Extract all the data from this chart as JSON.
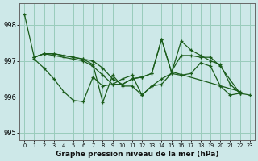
{
  "xlabel": "Graphe pression niveau de la mer (hPa)",
  "bg_color": "#cde8e8",
  "grid_color": "#99ccbb",
  "line_color": "#1a5c1a",
  "marker": "+",
  "xlim": [
    -0.5,
    23.5
  ],
  "ylim": [
    994.8,
    998.6
  ],
  "yticks": [
    995,
    996,
    997,
    998
  ],
  "xticks": [
    0,
    1,
    2,
    3,
    4,
    5,
    6,
    7,
    8,
    9,
    10,
    11,
    12,
    13,
    14,
    15,
    16,
    17,
    18,
    19,
    20,
    21,
    22,
    23
  ],
  "series_x": [
    [
      0,
      1,
      2,
      3,
      4,
      5,
      6,
      7,
      8,
      9,
      10,
      11,
      12,
      13,
      14,
      15,
      16,
      17,
      18,
      19,
      20,
      21,
      22
    ],
    [
      1,
      2,
      3,
      4,
      5,
      6,
      7,
      8,
      9,
      10,
      11,
      12,
      13,
      14,
      15,
      16,
      17,
      18,
      19,
      20,
      22
    ],
    [
      1,
      2,
      3,
      4,
      5,
      6,
      7,
      8,
      9,
      10,
      11,
      12,
      13,
      14,
      15,
      22
    ],
    [
      1,
      2,
      3,
      4,
      5,
      6,
      7,
      8,
      9,
      10,
      11,
      12,
      13,
      14,
      15,
      16,
      17,
      18,
      19,
      20,
      21,
      22,
      23
    ]
  ],
  "series_y": [
    [
      998.3,
      997.1,
      997.2,
      997.2,
      997.15,
      997.1,
      997.05,
      996.9,
      995.85,
      996.6,
      996.3,
      996.3,
      996.05,
      996.3,
      996.35,
      996.65,
      997.55,
      997.3,
      997.15,
      997.0,
      996.9,
      996.35,
      996.1
    ],
    [
      997.1,
      997.2,
      997.2,
      997.15,
      997.1,
      997.05,
      997.0,
      996.8,
      996.5,
      996.35,
      996.5,
      996.55,
      996.65,
      997.6,
      996.7,
      997.15,
      997.15,
      997.1,
      997.1,
      996.85,
      996.1
    ],
    [
      997.1,
      997.2,
      997.15,
      997.1,
      997.05,
      997.0,
      996.85,
      996.6,
      996.35,
      996.35,
      996.5,
      996.55,
      996.65,
      997.6,
      996.7,
      996.15
    ],
    [
      997.05,
      996.8,
      996.5,
      996.15,
      995.9,
      995.87,
      996.55,
      996.3,
      996.35,
      996.5,
      996.6,
      996.05,
      996.3,
      996.5,
      996.65,
      996.6,
      996.65,
      996.95,
      996.85,
      996.3,
      996.05,
      996.1,
      996.05
    ]
  ]
}
